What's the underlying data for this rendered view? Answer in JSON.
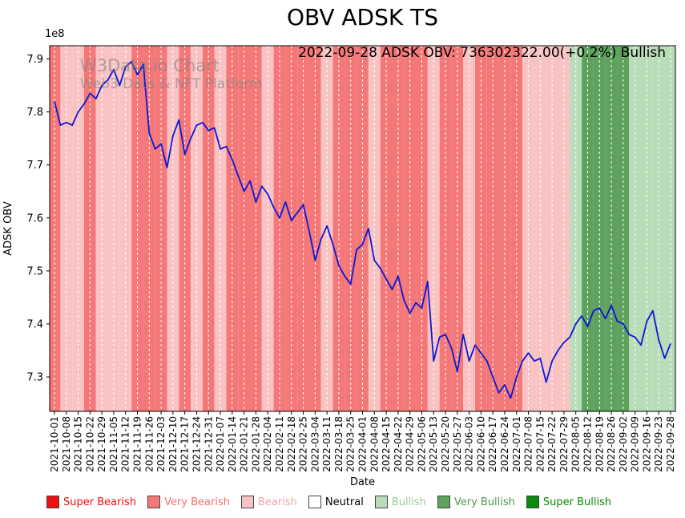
{
  "annotation": "2022-09-28 ADSK OBV: 736302322.00(+0.2%) Bullish",
  "watermark": {
    "line1": "W3Data.io Chart",
    "line2": "Web3 Data & NFT Platform"
  },
  "legend": [
    {
      "label": "Super Bearish",
      "swatch_color": "#ee1111",
      "text_color": "#ee1111"
    },
    {
      "label": "Very Bearish",
      "swatch_color": "#f57878",
      "text_color": "#f4716c"
    },
    {
      "label": "Bearish",
      "swatch_color": "#fac3c3",
      "text_color": "#f3a6a6"
    },
    {
      "label": "Neutral",
      "swatch_color": "#ffffff",
      "text_color": "#000000"
    },
    {
      "label": "Bullish",
      "swatch_color": "#b9dcb9",
      "text_color": "#9ccb9c"
    },
    {
      "label": "Very Bullish",
      "swatch_color": "#5ea25e",
      "text_color": "#4e9a4e"
    },
    {
      "label": "Super Bullish",
      "swatch_color": "#0b8a0b",
      "text_color": "#0b8a0b"
    }
  ],
  "chart_data": {
    "type": "line",
    "title": "OBV ADSK TS",
    "xlabel": "Date",
    "ylabel": "ADSK OBV",
    "y_scale_label": "1e8",
    "ylim_1e8": [
      7.235,
      7.925
    ],
    "y_ticks_1e8": [
      7.9,
      7.8,
      7.7,
      7.6,
      7.5,
      7.4,
      7.3
    ],
    "line_color": "#0b17d8",
    "grid": "vertical-white-dashed",
    "legend_position": "below",
    "x_tick_labels": [
      "2021-10-01",
      "2021-10-08",
      "2021-10-15",
      "2021-10-22",
      "2021-10-29",
      "2021-11-05",
      "2021-11-12",
      "2021-11-19",
      "2021-11-26",
      "2021-12-03",
      "2021-12-10",
      "2021-12-17",
      "2021-12-24",
      "2021-12-31",
      "2022-01-07",
      "2022-01-14",
      "2022-01-21",
      "2022-01-28",
      "2022-02-04",
      "2022-02-11",
      "2022-02-18",
      "2022-02-25",
      "2022-03-04",
      "2022-03-11",
      "2022-03-18",
      "2022-03-25",
      "2022-04-01",
      "2022-04-08",
      "2022-04-15",
      "2022-04-22",
      "2022-04-29",
      "2022-05-06",
      "2022-05-13",
      "2022-05-20",
      "2022-05-27",
      "2022-06-03",
      "2022-06-10",
      "2022-06-17",
      "2022-06-24",
      "2022-07-01",
      "2022-07-08",
      "2022-07-15",
      "2022-07-22",
      "2022-07-29",
      "2022-08-05",
      "2022-08-12",
      "2022-08-19",
      "2022-08-26",
      "2022-09-02",
      "2022-09-09",
      "2022-09-16",
      "2022-09-23",
      "2022-09-28"
    ],
    "series": [
      {
        "name": "ADSK OBV",
        "points_per_tick": 2,
        "values_1e8": [
          7.82,
          7.775,
          7.78,
          7.775,
          7.8,
          7.815,
          7.835,
          7.825,
          7.85,
          7.86,
          7.88,
          7.85,
          7.885,
          7.895,
          7.87,
          7.89,
          7.76,
          7.73,
          7.74,
          7.695,
          7.755,
          7.785,
          7.72,
          7.75,
          7.775,
          7.78,
          7.765,
          7.77,
          7.73,
          7.735,
          7.71,
          7.68,
          7.65,
          7.67,
          7.63,
          7.66,
          7.645,
          7.62,
          7.6,
          7.63,
          7.595,
          7.61,
          7.625,
          7.575,
          7.52,
          7.56,
          7.585,
          7.55,
          7.51,
          7.49,
          7.475,
          7.54,
          7.55,
          7.58,
          7.52,
          7.505,
          7.485,
          7.465,
          7.49,
          7.445,
          7.42,
          7.44,
          7.43,
          7.48,
          7.33,
          7.375,
          7.38,
          7.355,
          7.31,
          7.38,
          7.33,
          7.36,
          7.345,
          7.33,
          7.3,
          7.27,
          7.285,
          7.26,
          7.3,
          7.33,
          7.345,
          7.33,
          7.335,
          7.29,
          7.33,
          7.35,
          7.365,
          7.375,
          7.4,
          7.415,
          7.395,
          7.425,
          7.43,
          7.41,
          7.435,
          7.405,
          7.4,
          7.38,
          7.375,
          7.36,
          7.405,
          7.425,
          7.37,
          7.335,
          7.363
        ]
      }
    ],
    "final_value": "736302322.00",
    "final_change": "+0.2%",
    "final_sentiment": "Bullish",
    "sentiment_colors": {
      "super_bearish": "#ee1111",
      "very_bearish": "#f57878",
      "bearish": "#fac3c3",
      "neutral": "#ffffff",
      "bullish": "#b9dcb9",
      "very_bullish": "#5ea25e",
      "super_bullish": "#0b8a0b"
    },
    "sentiment_per_tick": [
      "very_bearish",
      "bearish",
      "bearish",
      "very_bearish",
      "bearish",
      "bearish",
      "bearish",
      "very_bearish",
      "very_bearish",
      "very_bearish",
      "bearish",
      "very_bearish",
      "bearish",
      "very_bearish",
      "bearish",
      "very_bearish",
      "very_bearish",
      "very_bearish",
      "bearish",
      "very_bearish",
      "very_bearish",
      "very_bearish",
      "very_bearish",
      "bearish",
      "very_bearish",
      "very_bearish",
      "very_bearish",
      "bearish",
      "very_bearish",
      "very_bearish",
      "very_bearish",
      "very_bearish",
      "bearish",
      "very_bearish",
      "very_bearish",
      "bearish",
      "very_bearish",
      "very_bearish",
      "very_bearish",
      "very_bearish",
      "bearish",
      "bearish",
      "bearish",
      "bearish",
      "bullish",
      "very_bullish",
      "very_bullish",
      "very_bullish",
      "very_bullish",
      "bullish",
      "bullish",
      "bullish",
      "bullish"
    ]
  }
}
